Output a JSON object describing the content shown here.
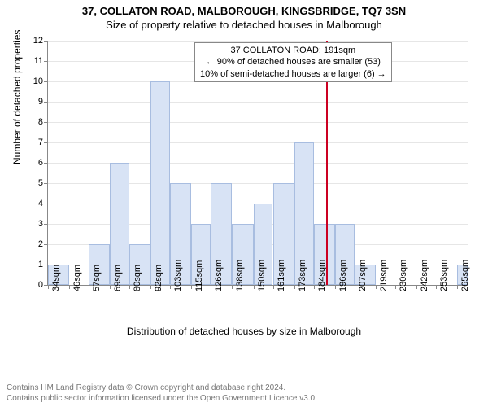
{
  "header": {
    "address_line": "37, COLLATON ROAD, MALBOROUGH, KINGSBRIDGE, TQ7 3SN",
    "subtitle": "Size of property relative to detached houses in Malborough"
  },
  "chart": {
    "type": "histogram",
    "ylabel": "Number of detached properties",
    "xlabel": "Distribution of detached houses by size in Malborough",
    "ylim": [
      0,
      12
    ],
    "ytick_step": 1,
    "background_color": "#ffffff",
    "grid_color": "#e6e6e6",
    "axis_color": "#888888",
    "bar_fill": "#d8e3f5",
    "bar_border": "#a8bde0",
    "marker_color": "#cc0022",
    "marker_x": 191,
    "xtick_labels": [
      "34sqm",
      "46sqm",
      "57sqm",
      "69sqm",
      "80sqm",
      "92sqm",
      "103sqm",
      "115sqm",
      "126sqm",
      "138sqm",
      "150sqm",
      "161sqm",
      "173sqm",
      "184sqm",
      "196sqm",
      "207sqm",
      "219sqm",
      "230sqm",
      "242sqm",
      "253sqm",
      "265sqm"
    ],
    "xtick_positions": [
      34,
      46,
      57,
      69,
      80,
      92,
      103,
      115,
      126,
      138,
      150,
      161,
      173,
      184,
      196,
      207,
      219,
      230,
      242,
      253,
      265
    ],
    "x_range": [
      34,
      271
    ],
    "bars": [
      {
        "x0": 34,
        "x1": 46,
        "count": 1
      },
      {
        "x0": 46,
        "x1": 57,
        "count": 0
      },
      {
        "x0": 57,
        "x1": 69,
        "count": 2
      },
      {
        "x0": 69,
        "x1": 80,
        "count": 6
      },
      {
        "x0": 80,
        "x1": 92,
        "count": 2
      },
      {
        "x0": 92,
        "x1": 103,
        "count": 10
      },
      {
        "x0": 103,
        "x1": 115,
        "count": 5
      },
      {
        "x0": 115,
        "x1": 126,
        "count": 3
      },
      {
        "x0": 126,
        "x1": 138,
        "count": 5
      },
      {
        "x0": 138,
        "x1": 150,
        "count": 3
      },
      {
        "x0": 150,
        "x1": 161,
        "count": 4
      },
      {
        "x0": 161,
        "x1": 173,
        "count": 5
      },
      {
        "x0": 173,
        "x1": 184,
        "count": 7
      },
      {
        "x0": 184,
        "x1": 196,
        "count": 3
      },
      {
        "x0": 196,
        "x1": 207,
        "count": 3
      },
      {
        "x0": 207,
        "x1": 219,
        "count": 1
      },
      {
        "x0": 219,
        "x1": 230,
        "count": 0
      },
      {
        "x0": 230,
        "x1": 242,
        "count": 0
      },
      {
        "x0": 242,
        "x1": 253,
        "count": 0
      },
      {
        "x0": 253,
        "x1": 265,
        "count": 0
      },
      {
        "x0": 265,
        "x1": 271,
        "count": 1
      }
    ],
    "annotation": {
      "line1": "37 COLLATON ROAD: 191sqm",
      "line2": "← 90% of detached houses are smaller (53)",
      "line3": "10% of semi-detached houses are larger (6) →"
    },
    "label_fontsize": 11,
    "axis_label_fontsize": 12
  },
  "footer": {
    "line1": "Contains HM Land Registry data © Crown copyright and database right 2024.",
    "line2": "Contains public sector information licensed under the Open Government Licence v3.0."
  }
}
